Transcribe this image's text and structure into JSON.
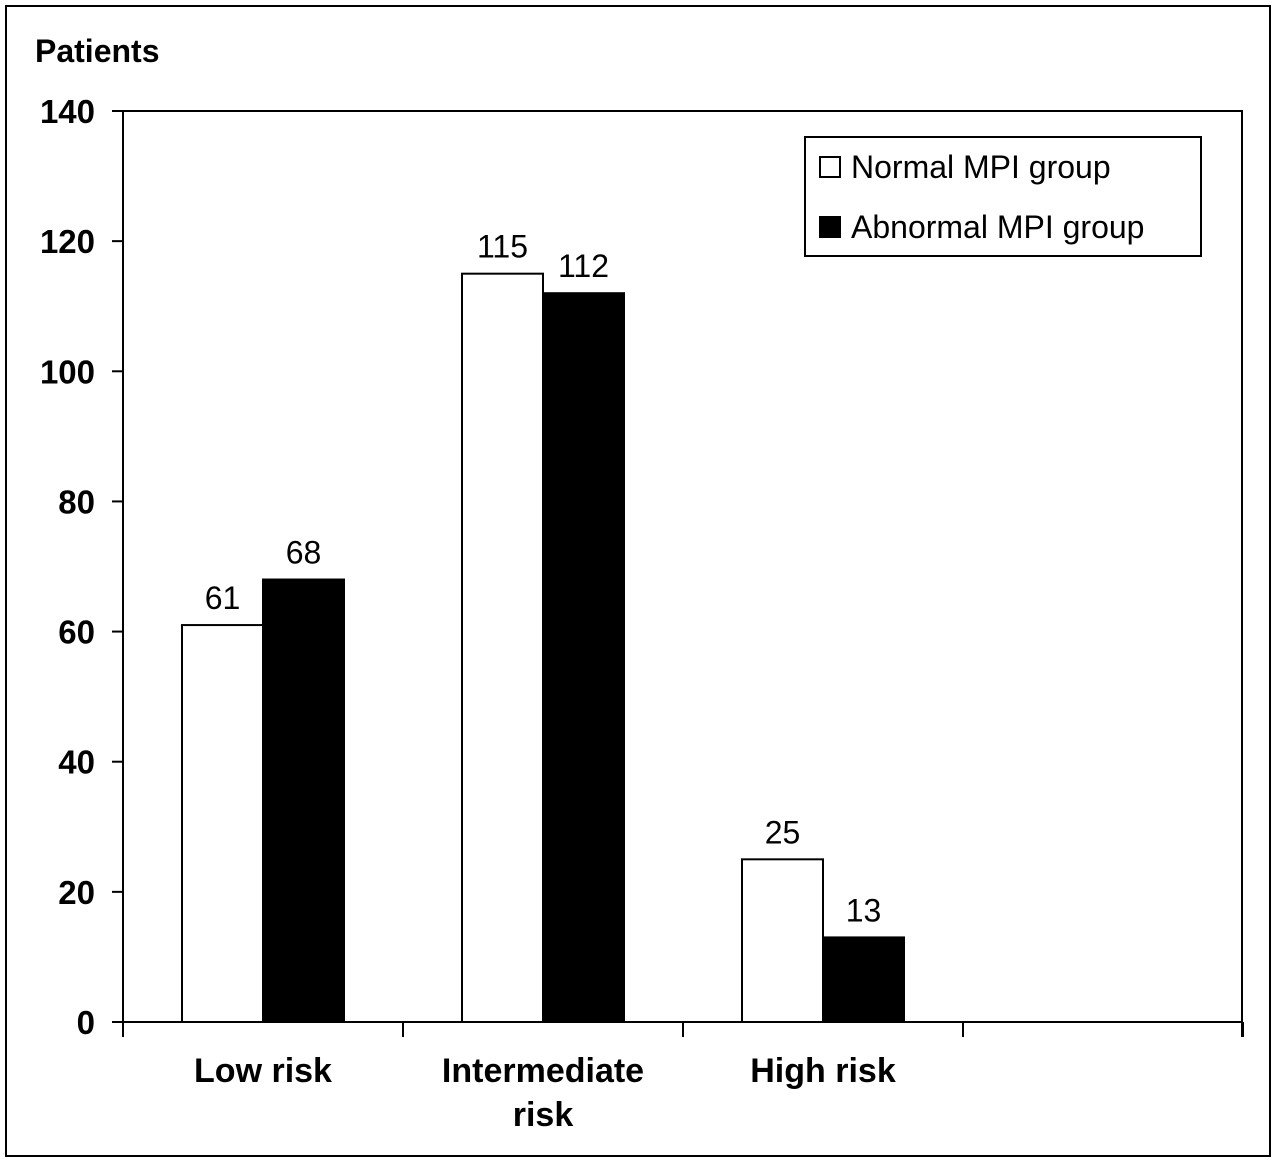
{
  "chart_data": {
    "type": "bar",
    "ylabel": "Patients",
    "xlabel": "",
    "ylim": [
      0,
      140
    ],
    "yticks": [
      0,
      20,
      40,
      60,
      80,
      100,
      120,
      140
    ],
    "categories": [
      [
        "Low risk"
      ],
      [
        "Intermediate",
        "risk"
      ],
      [
        "High risk"
      ]
    ],
    "series": [
      {
        "name": "Normal MPI group",
        "color": "#ffffff",
        "values": [
          61,
          115,
          25
        ]
      },
      {
        "name": "Abnormal MPI group",
        "color": "#000000",
        "values": [
          68,
          112,
          13
        ]
      }
    ],
    "legend_position": "top-right",
    "grid": false
  }
}
